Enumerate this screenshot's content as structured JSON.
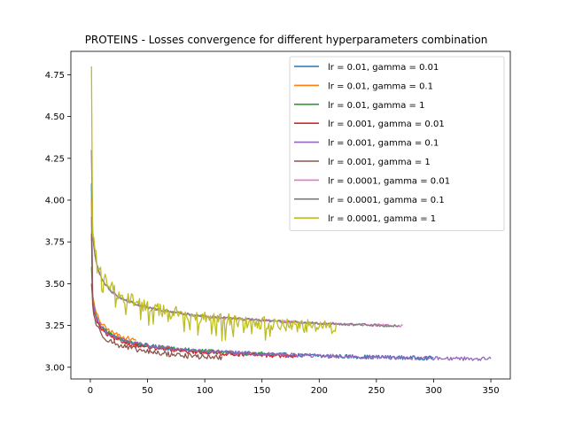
{
  "chart_data": {
    "type": "line",
    "title": "PROTEINS - Losses convergence for different hyperparameters combination",
    "xlabel": "",
    "ylabel": "",
    "xlim": [
      -17,
      367
    ],
    "ylim": [
      2.93,
      4.89
    ],
    "xticks": [
      0,
      50,
      100,
      150,
      200,
      250,
      300,
      350
    ],
    "yticks": [
      3.0,
      3.25,
      3.5,
      3.75,
      4.0,
      4.25,
      4.5,
      4.75
    ],
    "ytick_labels": [
      "3.00",
      "3.25",
      "3.50",
      "3.75",
      "4.00",
      "4.25",
      "4.50",
      "4.75"
    ],
    "grid": false,
    "legend_position": "upper right",
    "series": [
      {
        "name": "lr = 0.01, gamma = 0.01",
        "color": "#1f77b4",
        "epochs": 300,
        "start": 4.1,
        "floor": 2.95,
        "amp": 0.58,
        "rate": 0.3,
        "noise": 0.012
      },
      {
        "name": "lr = 0.01, gamma = 0.1",
        "color": "#ff7f0e",
        "epochs": 40,
        "start": 4.0,
        "floor": 2.97,
        "amp": 0.58,
        "rate": 0.3,
        "noise": 0.012
      },
      {
        "name": "lr = 0.01, gamma = 1",
        "color": "#2ca02c",
        "epochs": 160,
        "start": 3.6,
        "floor": 2.95,
        "amp": 0.58,
        "rate": 0.3,
        "noise": 0.013
      },
      {
        "name": "lr = 0.001, gamma = 0.01",
        "color": "#d62728",
        "epochs": 180,
        "start": 3.5,
        "floor": 2.95,
        "amp": 0.55,
        "rate": 0.3,
        "noise": 0.012
      },
      {
        "name": "lr = 0.001, gamma = 0.1",
        "color": "#9467bd",
        "epochs": 350,
        "start": 3.9,
        "floor": 2.95,
        "amp": 0.58,
        "rate": 0.3,
        "noise": 0.012
      },
      {
        "name": "lr = 0.001, gamma = 1",
        "color": "#8c564b",
        "epochs": 115,
        "start": 3.8,
        "floor": 2.93,
        "amp": 0.55,
        "rate": 0.31,
        "noise": 0.016
      },
      {
        "name": "lr = 0.0001, gamma = 0.01",
        "color": "#e377c2",
        "epochs": 273,
        "start": 4.3,
        "floor": 3.08,
        "amp": 0.9,
        "rate": 0.3,
        "noise": 0.008
      },
      {
        "name": "lr = 0.0001, gamma = 0.1",
        "color": "#7f7f7f",
        "epochs": 270,
        "start": 4.3,
        "floor": 3.08,
        "amp": 0.9,
        "rate": 0.3,
        "noise": 0.008
      },
      {
        "name": "lr = 0.0001, gamma = 1",
        "color": "#bcbd22",
        "epochs": 215,
        "start": 4.8,
        "floor": 2.9,
        "amp": 1.1,
        "rate": 0.22,
        "noise": 0.04
      }
    ]
  }
}
